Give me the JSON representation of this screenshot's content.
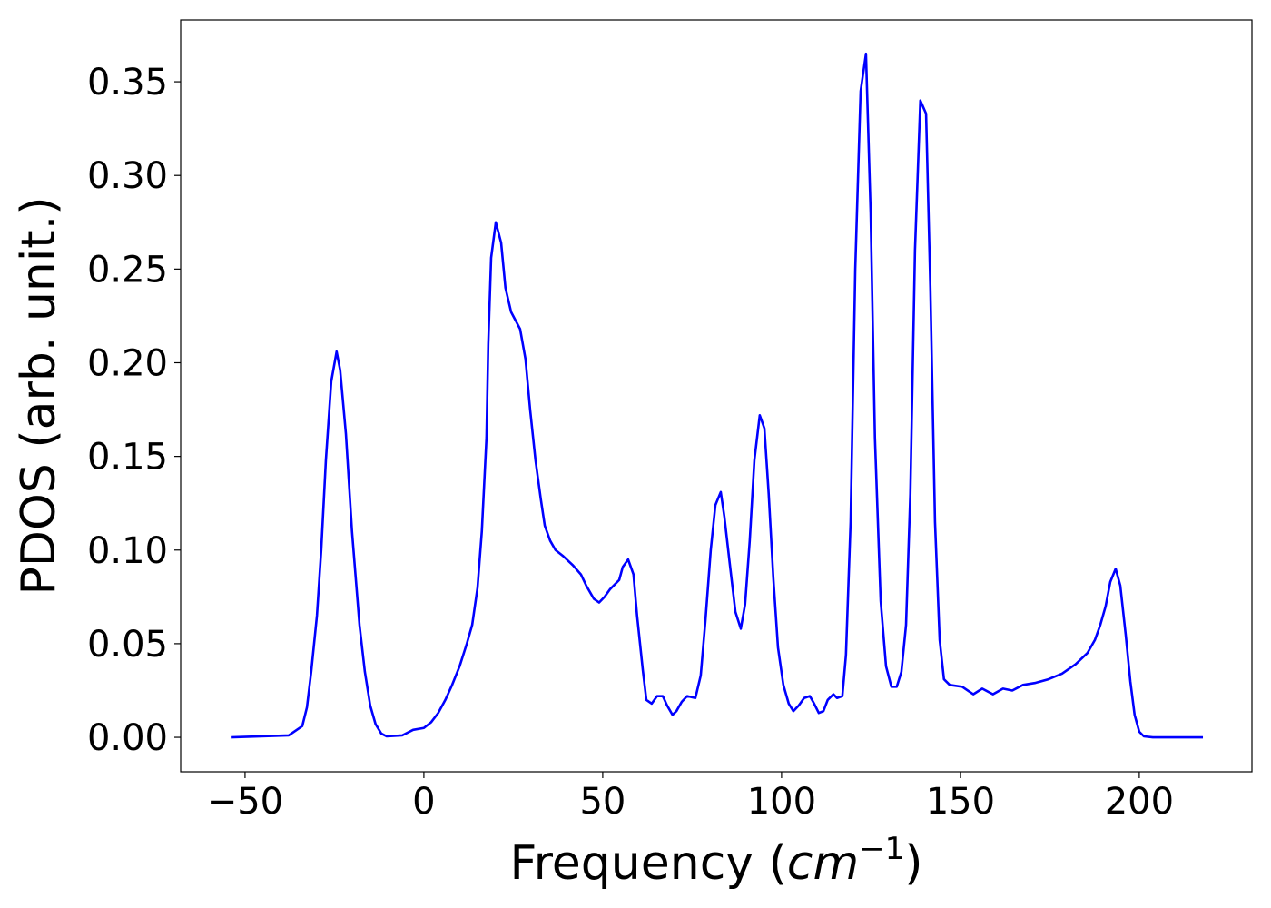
{
  "chart_data": {
    "type": "line",
    "xlabel": {
      "text": "Frequency (",
      "math": "cm",
      "sup": "−1",
      "end": ")"
    },
    "ylabel": "PDOS (arb. unit.)",
    "xlim": [
      -68,
      231.5
    ],
    "ylim": [
      -0.0184,
      0.383
    ],
    "xticks": [
      {
        "value": -50,
        "label": "−50"
      },
      0,
      50,
      100,
      150,
      200
    ],
    "yticks": [
      {
        "value": 0,
        "label": "0.00"
      },
      {
        "value": 0.05,
        "label": "0.05"
      },
      {
        "value": 0.1,
        "label": "0.10"
      },
      {
        "value": 0.15,
        "label": "0.15"
      },
      {
        "value": 0.2,
        "label": "0.20"
      },
      {
        "value": 0.25,
        "label": "0.25"
      },
      {
        "value": 0.3,
        "label": "0.30"
      },
      {
        "value": 0.35,
        "label": "0.35"
      }
    ],
    "grid": false,
    "series": [
      {
        "color": "#0000ff",
        "x": [
          -54,
          -37.8,
          -34.0,
          -32.7,
          -31.5,
          -29.9,
          -28.7,
          -27.4,
          -25.9,
          -24.4,
          -23.4,
          -21.8,
          -20.1,
          -18.0,
          -16.5,
          -15.0,
          -13.5,
          -11.9,
          -10.4,
          -6.1,
          -3.0,
          0,
          2.0,
          4.0,
          6.0,
          7.9,
          10.0,
          12.0,
          13.5,
          15.0,
          16.2,
          17.5,
          18.0,
          18.8,
          20.1,
          21.6,
          22.8,
          24.4,
          26.9,
          28.4,
          29.7,
          31.2,
          32.7,
          33.8,
          35.3,
          36.8,
          38.8,
          41.6,
          43.9,
          45.4,
          47.5,
          49.0,
          50.5,
          52.0,
          54.6,
          55.6,
          57.1,
          58.6,
          59.6,
          61.2,
          62.2,
          63.7,
          65.2,
          66.8,
          68.0,
          69.5,
          70.6,
          72.1,
          73.6,
          75.9,
          77.4,
          78.7,
          80.2,
          81.5,
          83.0,
          84.0,
          85.5,
          87.1,
          88.6,
          89.8,
          91.1,
          92.4,
          93.9,
          95.2,
          96.4,
          97.7,
          99.0,
          100.5,
          102.0,
          103.3,
          104.8,
          106.3,
          107.9,
          109.1,
          110.4,
          111.7,
          112.9,
          114.5,
          115.5,
          117.0,
          118.0,
          119.3,
          120.6,
          122.1,
          123.6,
          124.9,
          126.1,
          127.7,
          129.2,
          130.7,
          132.2,
          133.5,
          134.8,
          136.0,
          137.3,
          138.8,
          140.4,
          141.6,
          142.9,
          144.2,
          145.4,
          147.0,
          150.5,
          153.6,
          156.1,
          159.1,
          161.9,
          164.5,
          167.5,
          170.8,
          174.6,
          178.4,
          182.2,
          185.5,
          187.6,
          189.1,
          190.6,
          191.9,
          193.4,
          194.7,
          196.2,
          197.5,
          198.7,
          200,
          201.3,
          203.8,
          217.8
        ],
        "values": [
          0,
          0.001,
          0.006,
          0.016,
          0.035,
          0.065,
          0.1,
          0.148,
          0.19,
          0.206,
          0.196,
          0.162,
          0.11,
          0.06,
          0.035,
          0.017,
          0.007,
          0.002,
          0.0005,
          0.001,
          0.004,
          0.005,
          0.008,
          0.013,
          0.02,
          0.028,
          0.038,
          0.05,
          0.06,
          0.08,
          0.11,
          0.16,
          0.21,
          0.256,
          0.275,
          0.264,
          0.24,
          0.227,
          0.218,
          0.202,
          0.175,
          0.148,
          0.127,
          0.113,
          0.105,
          0.1,
          0.097,
          0.092,
          0.087,
          0.081,
          0.074,
          0.072,
          0.075,
          0.079,
          0.084,
          0.091,
          0.095,
          0.087,
          0.065,
          0.036,
          0.02,
          0.018,
          0.022,
          0.022,
          0.017,
          0.012,
          0.014,
          0.019,
          0.022,
          0.021,
          0.033,
          0.062,
          0.1,
          0.124,
          0.131,
          0.118,
          0.093,
          0.067,
          0.058,
          0.071,
          0.105,
          0.148,
          0.172,
          0.165,
          0.13,
          0.085,
          0.048,
          0.028,
          0.018,
          0.014,
          0.017,
          0.021,
          0.022,
          0.018,
          0.013,
          0.014,
          0.02,
          0.023,
          0.021,
          0.022,
          0.044,
          0.115,
          0.25,
          0.345,
          0.365,
          0.28,
          0.16,
          0.073,
          0.038,
          0.027,
          0.027,
          0.035,
          0.06,
          0.13,
          0.26,
          0.34,
          0.333,
          0.24,
          0.115,
          0.052,
          0.031,
          0.028,
          0.027,
          0.023,
          0.026,
          0.023,
          0.026,
          0.025,
          0.028,
          0.029,
          0.031,
          0.034,
          0.039,
          0.045,
          0.052,
          0.06,
          0.07,
          0.083,
          0.09,
          0.081,
          0.055,
          0.03,
          0.012,
          0.003,
          0.0005,
          0,
          0
        ]
      }
    ]
  }
}
